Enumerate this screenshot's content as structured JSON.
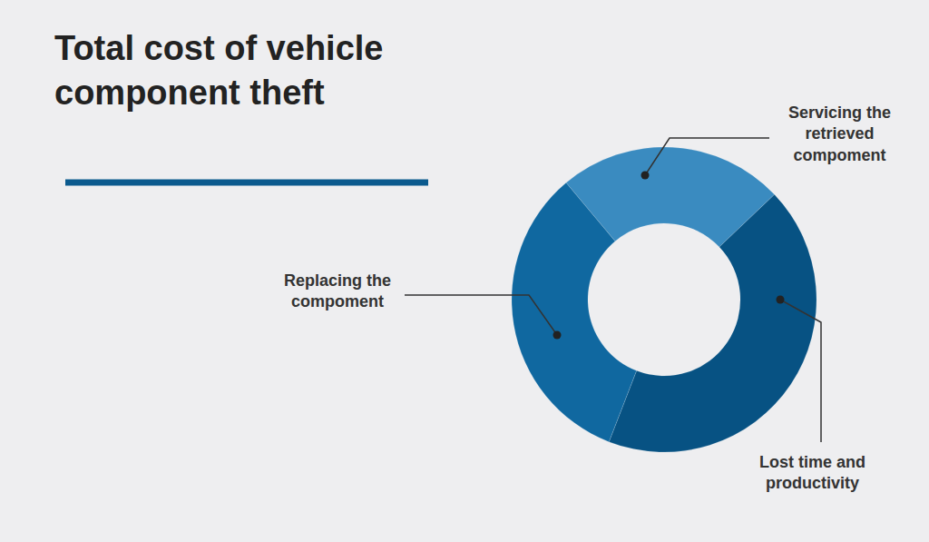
{
  "chart_data": {
    "type": "pie",
    "title": "Total cost of vehicle component theft",
    "categories": [
      "Servicing the retrieved compoment",
      "Lost time and productivity",
      "Replacing the compoment"
    ],
    "values": [
      24,
      43,
      33
    ],
    "colors": [
      "#3a8bc0",
      "#075283",
      "#1068a0"
    ]
  }
}
